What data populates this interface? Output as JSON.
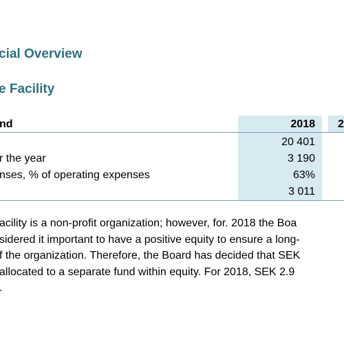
{
  "headings": {
    "section": "cial Overview",
    "subsection": "e Facility"
  },
  "table": {
    "header": [
      "nd",
      "2018",
      "2"
    ],
    "rows": [
      {
        "value": "20 401"
      },
      {
        "label": "r the year",
        "value": "3 190"
      },
      {
        "label": "nses, % of operating expenses",
        "value": "63%"
      },
      {
        "value": "3 011"
      }
    ]
  },
  "paragraph": [
    "acility is a non-profit organization; however, for. 2018 the Boa",
    "sidered it important to have a positive equity to ensure a long-",
    "f the organization. Therefore, the Board has decided that SEK",
    "allocated to a separate fund within equity. For 2018, SEK 2.9",
    "."
  ]
}
